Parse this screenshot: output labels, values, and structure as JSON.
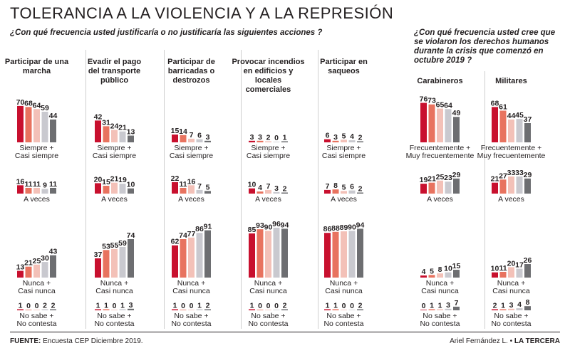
{
  "title": "TOLERANCIA A LA VIOLENCIA Y A LA REPRESIÓN",
  "question_left": "¿Con qué frecuencia usted justificaría o no justificaría las siguientes acciones ?",
  "question_right": "¿Con qué frecuencia usted cree que se violaron los derechos humanos durante la crisis que comenzó en octubre 2019 ?",
  "source_label": "FUENTE:",
  "source_text": "Encuesta CEP Diciembre 2019.",
  "credit_author": "Ariel Fernández L. •",
  "credit_outlet": "LA TERCERA",
  "colors": [
    "#c8102e",
    "#e8735f",
    "#f3c1b8",
    "#c9c9cf",
    "#6d6e71"
  ],
  "chart_data": [
    {
      "type": "bar",
      "title": "Participar de una marcha",
      "categories": [
        "Siempre + Casi siempre",
        "A veces",
        "Nunca + Casi nunca",
        "No sabe + No contesta"
      ],
      "values": [
        [
          70,
          68,
          64,
          59,
          44
        ],
        [
          16,
          11,
          11,
          9,
          11
        ],
        [
          13,
          21,
          25,
          30,
          43
        ],
        [
          1,
          0,
          0,
          2,
          2
        ]
      ]
    },
    {
      "type": "bar",
      "title": "Evadir el pago del transporte público",
      "categories": [
        "Siempre + Casi siempre",
        "A veces",
        "Nunca + Casi nunca",
        "No sabe + No contesta"
      ],
      "values": [
        [
          42,
          31,
          24,
          21,
          13
        ],
        [
          20,
          15,
          21,
          19,
          10
        ],
        [
          37,
          53,
          55,
          59,
          74
        ],
        [
          1,
          1,
          0,
          1,
          3
        ]
      ]
    },
    {
      "type": "bar",
      "title": "Participar de barricadas o destrozos",
      "categories": [
        "Siempre + Casi siempre",
        "A veces",
        "Nunca + Casi nunca",
        "No sabe + No contesta"
      ],
      "values": [
        [
          15,
          14,
          7,
          6,
          3
        ],
        [
          22,
          11,
          16,
          7,
          5
        ],
        [
          62,
          74,
          77,
          86,
          91
        ],
        [
          1,
          0,
          0,
          1,
          2
        ]
      ]
    },
    {
      "type": "bar",
      "title": "Provocar incendios en edificios y locales comerciales",
      "categories": [
        "Siempre + Casi siempre",
        "A veces",
        "Nunca + Casi nunca",
        "No sabe + No contesta"
      ],
      "values": [
        [
          3,
          3,
          2,
          0,
          1
        ],
        [
          10,
          4,
          7,
          3,
          2
        ],
        [
          85,
          93,
          90,
          96,
          94
        ],
        [
          1,
          0,
          0,
          0,
          2
        ]
      ]
    },
    {
      "type": "bar",
      "title": "Participar en saqueos",
      "categories": [
        "Siempre + Casi siempre",
        "A veces",
        "Nunca + Casi nunca",
        "No sabe + No contesta"
      ],
      "values": [
        [
          6,
          3,
          5,
          4,
          2
        ],
        [
          7,
          8,
          5,
          6,
          2
        ],
        [
          86,
          88,
          89,
          90,
          94
        ],
        [
          1,
          1,
          0,
          0,
          2
        ]
      ]
    },
    {
      "type": "bar",
      "title": "Carabineros",
      "categories": [
        "Frecuentemente + Muy frecuentemente",
        "A veces",
        "Nunca + Casi nunca",
        "No sabe + No contesta"
      ],
      "values": [
        [
          76,
          73,
          65,
          64,
          49
        ],
        [
          19,
          21,
          25,
          23,
          29
        ],
        [
          4,
          5,
          8,
          10,
          15
        ],
        [
          0,
          1,
          1,
          3,
          7
        ]
      ]
    },
    {
      "type": "bar",
      "title": "Militares",
      "categories": [
        "Frecuentemente + Muy frecuentemente",
        "A veces",
        "Nunca + Casi nunca",
        "No sabe + No contesta"
      ],
      "values": [
        [
          68,
          61,
          44,
          45,
          37
        ],
        [
          21,
          27,
          33,
          33,
          29
        ],
        [
          10,
          11,
          20,
          17,
          26
        ],
        [
          2,
          1,
          3,
          4,
          8
        ]
      ]
    }
  ]
}
